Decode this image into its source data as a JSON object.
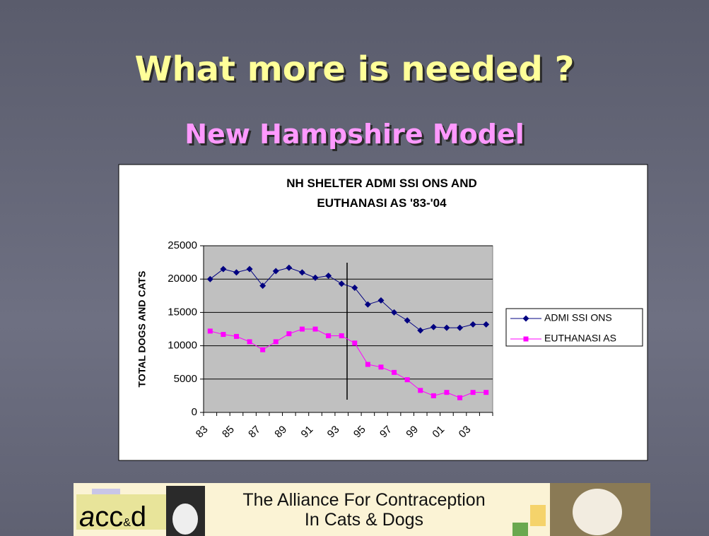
{
  "title": "What more is needed ?",
  "subtitle": "New Hampshire Model",
  "chart_data": {
    "type": "line",
    "title": [
      "NH SHELTER ADMI SSI ONS AND",
      "EUTHANASI AS '83-'04"
    ],
    "y_label": "TOTAL DOGS AND CATS",
    "categories": [
      "83",
      null,
      "85",
      null,
      "87",
      null,
      "89",
      null,
      "91",
      null,
      "93",
      null,
      "95",
      null,
      "97",
      null,
      "99",
      null,
      "01",
      null,
      "03",
      null
    ],
    "series": [
      {
        "name": "ADMI SSI ONS",
        "color": "#000080",
        "marker": "diamond",
        "values": [
          20000,
          21500,
          21000,
          21500,
          19000,
          21200,
          21700,
          21000,
          20200,
          20500,
          19300,
          18700,
          16200,
          16800,
          15000,
          13800,
          12300,
          12800,
          12700,
          12700,
          13200,
          13200
        ]
      },
      {
        "name": "EUTHANASI AS",
        "color": "#ff00ff",
        "marker": "square",
        "values": [
          12200,
          11700,
          11400,
          10600,
          9400,
          10600,
          11800,
          12500,
          12500,
          11500,
          11500,
          10400,
          7200,
          6800,
          6000,
          4900,
          3300,
          2500,
          3000,
          2200,
          3000,
          3000
        ]
      }
    ],
    "ylim": [
      0,
      25000
    ],
    "yticks": [
      0,
      5000,
      10000,
      15000,
      20000,
      25000
    ],
    "grid": true,
    "legend": "right"
  },
  "banner": {
    "logo": [
      "a",
      "cc",
      "&",
      "d"
    ],
    "text": [
      "The Alliance For Contraception",
      "In Cats & Dogs"
    ]
  }
}
